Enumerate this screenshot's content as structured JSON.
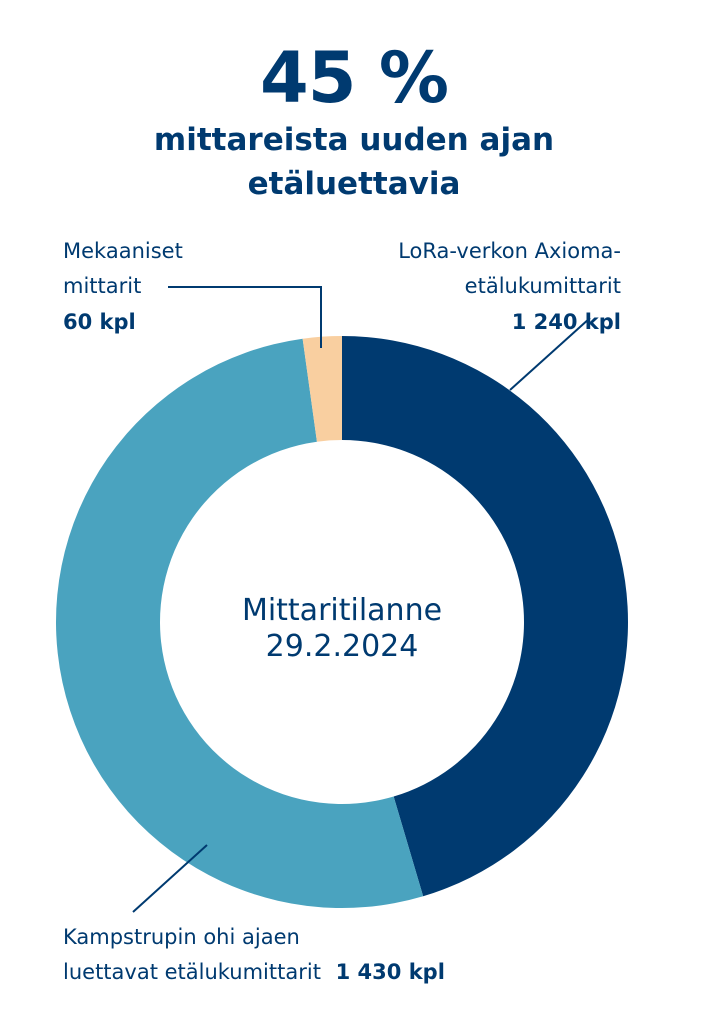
{
  "headline": {
    "value": "45 %",
    "subtitle_line1": "mittareista uuden ajan",
    "subtitle_line2": "etäluettavia"
  },
  "chart_data": {
    "type": "pie",
    "title": "45 %",
    "subtitle": "mittareista uuden ajan etäluettavia",
    "center_label_line1": "Mittaritilanne",
    "center_label_line2": "29.2.2024",
    "unit": "kpl",
    "slices": [
      {
        "label_lines": [
          "LoRa-verkon Axioma-",
          "etälukumittarit"
        ],
        "value": 1240,
        "value_label": "1 240 kpl",
        "color": "#003a70"
      },
      {
        "label_lines": [
          "Kampstrupin ohi ajaen",
          "luettavat etälukumittarit"
        ],
        "value": 1430,
        "value_label": "1 430 kpl",
        "color": "#4aa3bf"
      },
      {
        "label_lines": [
          "Mekaaniset",
          "mittarit"
        ],
        "value": 60,
        "value_label": "60 kpl",
        "color": "#f9cfa0"
      }
    ]
  }
}
